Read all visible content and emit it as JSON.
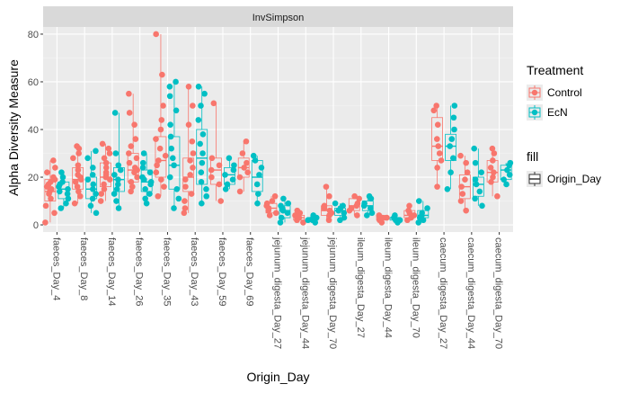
{
  "chart_data": {
    "type": "box_jitter",
    "strip_label": "InvSimpson",
    "xlabel": "Origin_Day",
    "ylabel": "Alpha Diversity Measure",
    "ylim": [
      -3,
      83
    ],
    "yticks": [
      0,
      20,
      40,
      60,
      80
    ],
    "grid": true,
    "legend_position": "right",
    "categories": [
      "faeces_Day_4",
      "faeces_Day_8",
      "faeces_Day_14",
      "faeces_Day_26",
      "faeces_Day_35",
      "faeces_Day_43",
      "faeces_Day_59",
      "faeces_Day_69",
      "jejunum_digesta_Day_27",
      "jejunum_digesta_Day_44",
      "jejunum_digesta_Day_70",
      "ileum_digesta_Day_27",
      "ileum_digesta_Day_44",
      "ileum_digesta_Day_70",
      "caecum_digesta_Day_27",
      "caecum_digesta_Day_44",
      "caecum_digesta_Day_70"
    ],
    "series": [
      {
        "name": "Control",
        "color": "#F8766D",
        "boxes": [
          {
            "min": 1,
            "q1": 10,
            "median": 14,
            "q3": 19,
            "max": 27
          },
          {
            "min": 9,
            "q1": 15,
            "median": 19,
            "q3": 24,
            "max": 33
          },
          {
            "min": 10,
            "q1": 16,
            "median": 20,
            "q3": 26,
            "max": 34
          },
          {
            "min": 14,
            "q1": 18,
            "median": 23,
            "q3": 30,
            "max": 55
          },
          {
            "min": 12,
            "q1": 20,
            "median": 27,
            "q3": 37,
            "max": 80
          },
          {
            "min": 5,
            "q1": 14,
            "median": 20,
            "q3": 28,
            "max": 58
          },
          {
            "min": 10,
            "q1": 17,
            "median": 23,
            "q3": 28,
            "max": 51
          },
          {
            "min": 14,
            "q1": 20,
            "median": 24,
            "q3": 28,
            "max": 35
          },
          {
            "min": 4,
            "q1": 5,
            "median": 7,
            "q3": 9,
            "max": 12
          },
          {
            "min": 1,
            "q1": 2,
            "median": 3,
            "q3": 4,
            "max": 6
          },
          {
            "min": 2,
            "q1": 4,
            "median": 6,
            "q3": 8,
            "max": 16
          },
          {
            "min": 4,
            "q1": 6,
            "median": 8,
            "q3": 11,
            "max": 12
          },
          {
            "min": 1,
            "q1": 2,
            "median": 3,
            "q3": 4,
            "max": 4
          },
          {
            "min": 2,
            "q1": 3,
            "median": 4,
            "q3": 6,
            "max": 8
          },
          {
            "min": 16,
            "q1": 27,
            "median": 33,
            "q3": 45,
            "max": 50
          },
          {
            "min": 6,
            "q1": 11,
            "median": 16,
            "q3": 21,
            "max": 29
          },
          {
            "min": 12,
            "q1": 18,
            "median": 22,
            "q3": 27,
            "max": 32
          }
        ],
        "points": [
          [
            1,
            5,
            8,
            11,
            13,
            14,
            15,
            16,
            17,
            18,
            19,
            20,
            22,
            24,
            27
          ],
          [
            9,
            12,
            14,
            16,
            18,
            19,
            20,
            21,
            23,
            25,
            28,
            30,
            32,
            33
          ],
          [
            10,
            13,
            15,
            17,
            19,
            20,
            21,
            22,
            24,
            26,
            28,
            30,
            32,
            34
          ],
          [
            14,
            16,
            18,
            20,
            22,
            23,
            24,
            26,
            28,
            30,
            33,
            36,
            42,
            47,
            55
          ],
          [
            12,
            16,
            19,
            22,
            25,
            27,
            29,
            32,
            36,
            40,
            44,
            50,
            63,
            80
          ],
          [
            5,
            7,
            10,
            13,
            16,
            19,
            21,
            24,
            27,
            30,
            35,
            42,
            50,
            58
          ],
          [
            10,
            17,
            20,
            23,
            25,
            28,
            51
          ],
          [
            14,
            20,
            22,
            24,
            26,
            30,
            35
          ],
          [
            4,
            5,
            6,
            7,
            8,
            9,
            10,
            12
          ],
          [
            1,
            2,
            3,
            3,
            4,
            5,
            6
          ],
          [
            2,
            4,
            5,
            6,
            7,
            8,
            12,
            16
          ],
          [
            4,
            6,
            7,
            8,
            9,
            11,
            12
          ],
          [
            1,
            2,
            3,
            3,
            4
          ],
          [
            2,
            3,
            4,
            5,
            6,
            8
          ],
          [
            16,
            24,
            27,
            30,
            33,
            36,
            42,
            48,
            50
          ],
          [
            6,
            10,
            13,
            16,
            19,
            22,
            26,
            29
          ],
          [
            12,
            18,
            20,
            22,
            24,
            27,
            30,
            32
          ]
        ]
      },
      {
        "name": "EcN",
        "color": "#00BFC4",
        "boxes": [
          {
            "min": 7,
            "q1": 11,
            "median": 15,
            "q3": 18,
            "max": 22
          },
          {
            "min": 5,
            "q1": 11,
            "median": 15,
            "q3": 20,
            "max": 31
          },
          {
            "min": 7,
            "q1": 14,
            "median": 19,
            "q3": 24,
            "max": 47
          },
          {
            "min": 9,
            "q1": 14,
            "median": 18,
            "q3": 23,
            "max": 30
          },
          {
            "min": 7,
            "q1": 15,
            "median": 25,
            "q3": 37,
            "max": 60
          },
          {
            "min": 9,
            "q1": 17,
            "median": 28,
            "q3": 40,
            "max": 58
          },
          {
            "min": 15,
            "q1": 17,
            "median": 21,
            "q3": 24,
            "max": 28
          },
          {
            "min": 9,
            "q1": 14,
            "median": 20,
            "q3": 27,
            "max": 29
          },
          {
            "min": 1,
            "q1": 3,
            "median": 6,
            "q3": 8,
            "max": 11
          },
          {
            "min": 1,
            "q1": 2,
            "median": 3,
            "q3": 3,
            "max": 4
          },
          {
            "min": 2,
            "q1": 4,
            "median": 6,
            "q3": 7,
            "max": 9
          },
          {
            "min": 4,
            "q1": 6,
            "median": 8,
            "q3": 10,
            "max": 12
          },
          {
            "min": 1,
            "q1": 2,
            "median": 3,
            "q3": 3,
            "max": 4
          },
          {
            "min": 1,
            "q1": 3,
            "median": 4,
            "q3": 6,
            "max": 10
          },
          {
            "min": 15,
            "q1": 27,
            "median": 33,
            "q3": 38,
            "max": 50
          },
          {
            "min": 8,
            "q1": 12,
            "median": 17,
            "q3": 20,
            "max": 32
          },
          {
            "min": 17,
            "q1": 19,
            "median": 23,
            "q3": 25,
            "max": 26
          }
        ],
        "points": [
          [
            7,
            9,
            11,
            13,
            14,
            15,
            16,
            17,
            18,
            20,
            22
          ],
          [
            5,
            8,
            11,
            13,
            15,
            17,
            19,
            21,
            24,
            28,
            31
          ],
          [
            7,
            10,
            13,
            15,
            17,
            19,
            21,
            23,
            25,
            30,
            47
          ],
          [
            9,
            11,
            13,
            15,
            17,
            18,
            19,
            20,
            22,
            24,
            26,
            30
          ],
          [
            7,
            11,
            15,
            20,
            25,
            28,
            32,
            37,
            42,
            48,
            54,
            58,
            60
          ],
          [
            9,
            12,
            15,
            18,
            22,
            26,
            30,
            34,
            38,
            44,
            50,
            55,
            58
          ],
          [
            15,
            17,
            19,
            21,
            23,
            25,
            28
          ],
          [
            9,
            13,
            17,
            21,
            24,
            27,
            29
          ],
          [
            1,
            3,
            5,
            6,
            7,
            8,
            9,
            11
          ],
          [
            1,
            2,
            2,
            3,
            3,
            4
          ],
          [
            2,
            3,
            5,
            6,
            7,
            8,
            9
          ],
          [
            4,
            5,
            7,
            8,
            9,
            11,
            12
          ],
          [
            1,
            2,
            2,
            3,
            4
          ],
          [
            1,
            2,
            3,
            4,
            5,
            7,
            10
          ],
          [
            15,
            22,
            28,
            33,
            36,
            40,
            45,
            50
          ],
          [
            8,
            11,
            14,
            17,
            19,
            22,
            26,
            32
          ],
          [
            17,
            19,
            21,
            23,
            25,
            26
          ]
        ]
      }
    ]
  },
  "legend": {
    "treatment_title": "Treatment",
    "fill_title": "fill",
    "fill_label": "Origin_Day"
  }
}
